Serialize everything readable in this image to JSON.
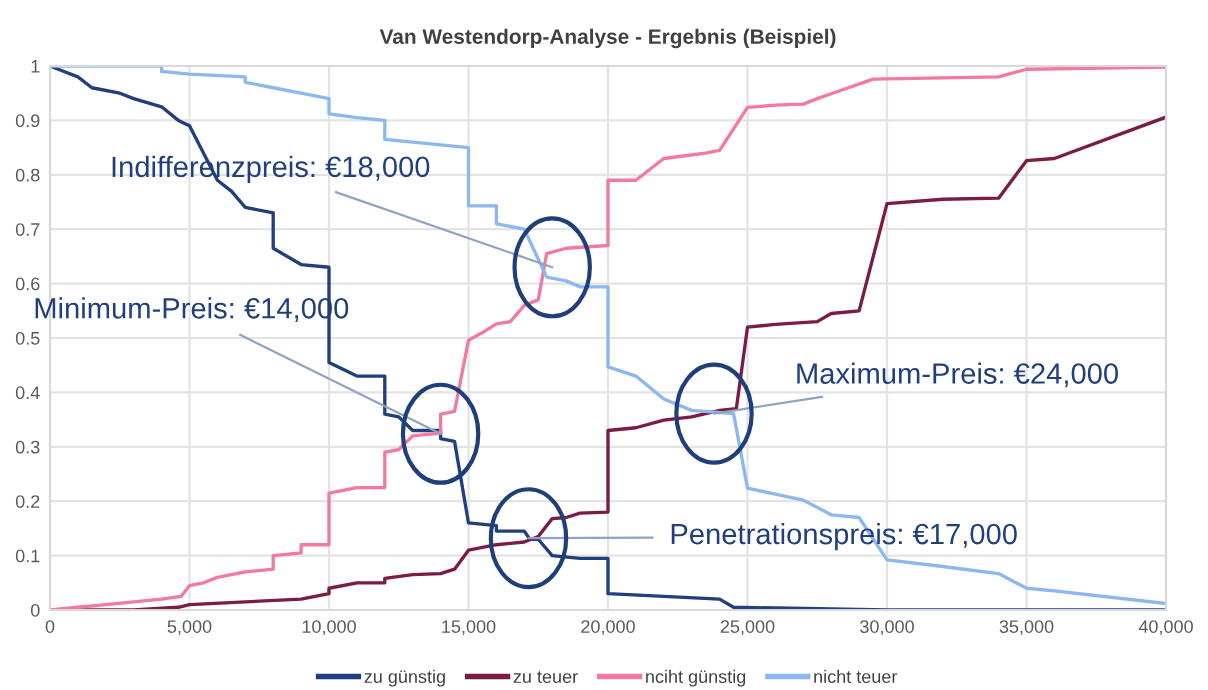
{
  "chart_data": {
    "type": "line",
    "title": "Van Westendorp-Analyse - Ergebnis (Beispiel)",
    "xlim": [
      0,
      40000
    ],
    "xticks": [
      {
        "value": 0,
        "label": "0"
      },
      {
        "value": 5000,
        "label": "5,000"
      },
      {
        "value": 10000,
        "label": "10,000"
      },
      {
        "value": 15000,
        "label": "15,000"
      },
      {
        "value": 20000,
        "label": "20,000"
      },
      {
        "value": 25000,
        "label": "25,000"
      },
      {
        "value": 30000,
        "label": "30,000"
      },
      {
        "value": 35000,
        "label": "35,000"
      },
      {
        "value": 40000,
        "label": "40,000"
      }
    ],
    "ylim": [
      0,
      1
    ],
    "yticks": [
      0,
      0.1,
      0.2,
      0.3,
      0.4,
      0.5,
      0.6,
      0.7,
      0.8,
      0.9,
      1
    ],
    "grid": true,
    "legend": "bottom",
    "marker": "none",
    "line_style": "solid",
    "series": [
      {
        "name": "zu günstig",
        "color": "#203f7c",
        "x": [
          0,
          500,
          1000,
          1500,
          2500,
          3000,
          4000,
          4600,
          5000,
          6000,
          6500,
          7000,
          8000,
          8000,
          9000,
          10000,
          10000,
          11000,
          12000,
          12000,
          12500,
          13000,
          14000,
          14000,
          14500,
          15000,
          16000,
          16000,
          17000,
          17200,
          17500,
          18000,
          19000,
          20000,
          20000,
          24000,
          24500,
          30000,
          40000
        ],
        "values": [
          1,
          0.99,
          0.98,
          0.96,
          0.95,
          0.94,
          0.925,
          0.9,
          0.89,
          0.79,
          0.77,
          0.74,
          0.73,
          0.665,
          0.635,
          0.63,
          0.455,
          0.43,
          0.43,
          0.36,
          0.355,
          0.33,
          0.33,
          0.315,
          0.31,
          0.16,
          0.155,
          0.145,
          0.145,
          0.13,
          0.13,
          0.1,
          0.095,
          0.095,
          0.03,
          0.02,
          0.005,
          0,
          0
        ]
      },
      {
        "name": "zu teuer",
        "color": "#7a1c45",
        "x": [
          0,
          3000,
          4600,
          5000,
          7000,
          9000,
          10000,
          10000,
          11000,
          12000,
          12000,
          13000,
          14000,
          14500,
          15000,
          16000,
          17000,
          17500,
          18000,
          18500,
          19000,
          20000,
          20000,
          21000,
          22000,
          23000,
          24000,
          24600,
          25000,
          26000,
          27500,
          28000,
          29000,
          30000,
          32000,
          34000,
          35000,
          36000,
          40000
        ],
        "values": [
          0,
          0,
          0.005,
          0.01,
          0.015,
          0.02,
          0.03,
          0.04,
          0.05,
          0.05,
          0.058,
          0.065,
          0.067,
          0.075,
          0.11,
          0.12,
          0.125,
          0.135,
          0.168,
          0.17,
          0.178,
          0.18,
          0.33,
          0.335,
          0.349,
          0.355,
          0.367,
          0.37,
          0.52,
          0.525,
          0.53,
          0.545,
          0.55,
          0.747,
          0.755,
          0.757,
          0.826,
          0.83,
          0.906
        ]
      },
      {
        "name": "nciht günstig",
        "color": "#f27aa0",
        "x": [
          0,
          1000,
          2000,
          3000,
          4000,
          4700,
          5000,
          5500,
          6000,
          6500,
          7000,
          8000,
          8000,
          9000,
          9000,
          10000,
          10000,
          11000,
          12000,
          12000,
          12500,
          13000,
          14000,
          14000,
          14500,
          15000,
          15500,
          16000,
          16500,
          17000,
          17500,
          17800,
          18500,
          20000,
          20000,
          21000,
          22000,
          23500,
          24000,
          25000,
          26000,
          27000,
          27500,
          28000,
          29500,
          34000,
          35000,
          40000
        ],
        "values": [
          0,
          0.005,
          0.01,
          0.015,
          0.02,
          0.025,
          0.045,
          0.05,
          0.06,
          0.065,
          0.07,
          0.075,
          0.1,
          0.105,
          0.12,
          0.12,
          0.215,
          0.225,
          0.225,
          0.29,
          0.295,
          0.32,
          0.325,
          0.36,
          0.365,
          0.496,
          0.51,
          0.526,
          0.53,
          0.56,
          0.57,
          0.655,
          0.665,
          0.67,
          0.79,
          0.79,
          0.83,
          0.84,
          0.845,
          0.924,
          0.928,
          0.93,
          0.94,
          0.949,
          0.976,
          0.98,
          0.994,
          0.998
        ]
      },
      {
        "name": "nicht teuer",
        "color": "#8db8ef",
        "x": [
          0,
          4000,
          4000,
          5000,
          7000,
          7000,
          8000,
          9000,
          10000,
          10000,
          11000,
          12000,
          12000,
          13000,
          14000,
          15000,
          15000,
          16000,
          16000,
          17000,
          17800,
          18500,
          19000,
          20000,
          20000,
          21000,
          22000,
          23000,
          24500,
          25000,
          27000,
          28000,
          29000,
          30000,
          32000,
          34000,
          35000,
          36000,
          40000
        ],
        "values": [
          1,
          1,
          0.99,
          0.985,
          0.98,
          0.97,
          0.96,
          0.95,
          0.94,
          0.912,
          0.905,
          0.9,
          0.865,
          0.86,
          0.855,
          0.85,
          0.743,
          0.743,
          0.71,
          0.7,
          0.612,
          0.605,
          0.594,
          0.594,
          0.447,
          0.43,
          0.388,
          0.367,
          0.361,
          0.224,
          0.202,
          0.175,
          0.17,
          0.092,
          0.08,
          0.067,
          0.04,
          0.035,
          0.012
        ]
      }
    ],
    "annotations": [
      {
        "text": "Indifferenzpreis: €18,000",
        "x": 18000,
        "y": 0.63
      },
      {
        "text": "Minimum-Preis: €14,000",
        "x": 14000,
        "y": 0.324
      },
      {
        "text": "Maximum-Preis: €24,000",
        "x": 23800,
        "y": 0.361
      },
      {
        "text": "Penetrationspreis: €17,000",
        "x": 17150,
        "y": 0.132
      }
    ]
  }
}
